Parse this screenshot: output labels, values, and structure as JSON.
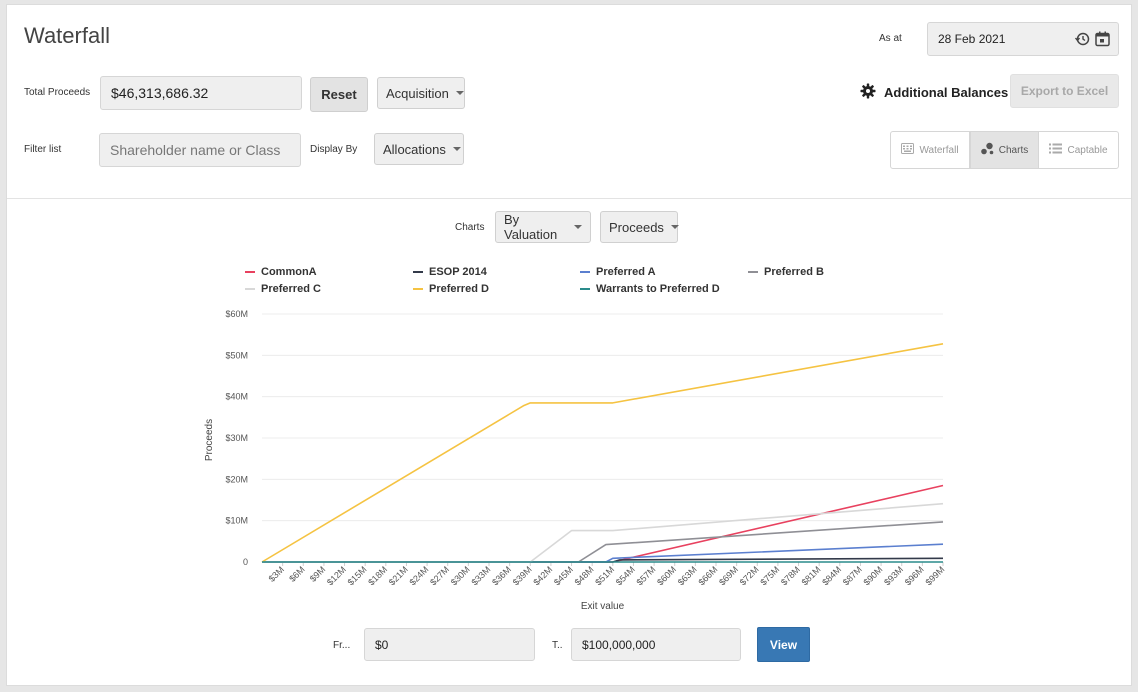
{
  "header": {
    "title": "Waterfall",
    "as_at_label": "As at",
    "as_at_value": "28 Feb 2021"
  },
  "toolbar": {
    "total_proceeds_label": "Total Proceeds",
    "total_proceeds_value": "$46,313,686.32",
    "reset_label": "Reset",
    "scenario_selected": "Acquisition",
    "additional_balances_label": "Additional Balances",
    "export_label": "Export to Excel",
    "filter_label": "Filter list",
    "filter_placeholder": "Shareholder name or Class",
    "display_by_label": "Display By",
    "display_by_selected": "Allocations",
    "views": [
      {
        "label": "Waterfall",
        "active": false,
        "icon": "keyboard-icon"
      },
      {
        "label": "Charts",
        "active": true,
        "icon": "bubbles-icon"
      },
      {
        "label": "Captable",
        "active": false,
        "icon": "list-icon"
      }
    ]
  },
  "chart_controls": {
    "charts_label": "Charts",
    "by_selected": "By Valuation",
    "metric_selected": "Proceeds"
  },
  "range": {
    "from_label": "Fr...",
    "from_value": "$0",
    "to_label": "T..",
    "to_value": "$100,000,000",
    "view_label": "View"
  },
  "chart_data": {
    "type": "line",
    "title": "",
    "xlabel": "Exit value",
    "ylabel": "Proceeds",
    "xlim": [
      0,
      99
    ],
    "ylim": [
      0,
      60
    ],
    "x_ticks": [
      "$3M",
      "$6M",
      "$9M",
      "$12M",
      "$15M",
      "$18M",
      "$21M",
      "$24M",
      "$27M",
      "$30M",
      "$33M",
      "$36M",
      "$39M",
      "$42M",
      "$45M",
      "$48M",
      "$51M",
      "$54M",
      "$57M",
      "$60M",
      "$63M",
      "$66M",
      "$69M",
      "$72M",
      "$75M",
      "$78M",
      "$81M",
      "$84M",
      "$87M",
      "$90M",
      "$93M",
      "$96M",
      "$99M"
    ],
    "y_ticks": [
      "0",
      "$10M",
      "$20M",
      "$30M",
      "$40M",
      "$50M",
      "$60M"
    ],
    "y_tick_values": [
      0,
      10,
      20,
      30,
      40,
      50,
      60
    ],
    "legend": "top",
    "grid": "horizontal",
    "series": [
      {
        "name": "CommonA",
        "color": "#e8415f",
        "points": [
          [
            0,
            0
          ],
          [
            51,
            0
          ],
          [
            99,
            18.5
          ]
        ]
      },
      {
        "name": "ESOP 2014",
        "color": "#333a4a",
        "points": [
          [
            0,
            0
          ],
          [
            51,
            0
          ],
          [
            52,
            0.5
          ],
          [
            99,
            0.9
          ]
        ]
      },
      {
        "name": "Preferred A",
        "color": "#5b7fcf",
        "points": [
          [
            0,
            0
          ],
          [
            50,
            0
          ],
          [
            51,
            0.9
          ],
          [
            99,
            4.3
          ]
        ]
      },
      {
        "name": "Preferred B",
        "color": "#8f8f95",
        "points": [
          [
            0,
            0
          ],
          [
            46,
            0
          ],
          [
            50,
            4.2
          ],
          [
            99,
            9.7
          ]
        ]
      },
      {
        "name": "Preferred C",
        "color": "#d8d8d8",
        "points": [
          [
            0,
            0
          ],
          [
            39,
            0
          ],
          [
            45,
            7.6
          ],
          [
            51,
            7.6
          ],
          [
            99,
            14.1
          ]
        ]
      },
      {
        "name": "Preferred D",
        "color": "#f5c342",
        "points": [
          [
            0,
            0
          ],
          [
            38,
            37.8
          ],
          [
            39,
            38.5
          ],
          [
            51,
            38.5
          ],
          [
            99,
            52.8
          ]
        ]
      },
      {
        "name": "Warrants to Preferred D",
        "color": "#2a8b8b",
        "points": [
          [
            0,
            0
          ],
          [
            99,
            0
          ]
        ]
      }
    ]
  }
}
